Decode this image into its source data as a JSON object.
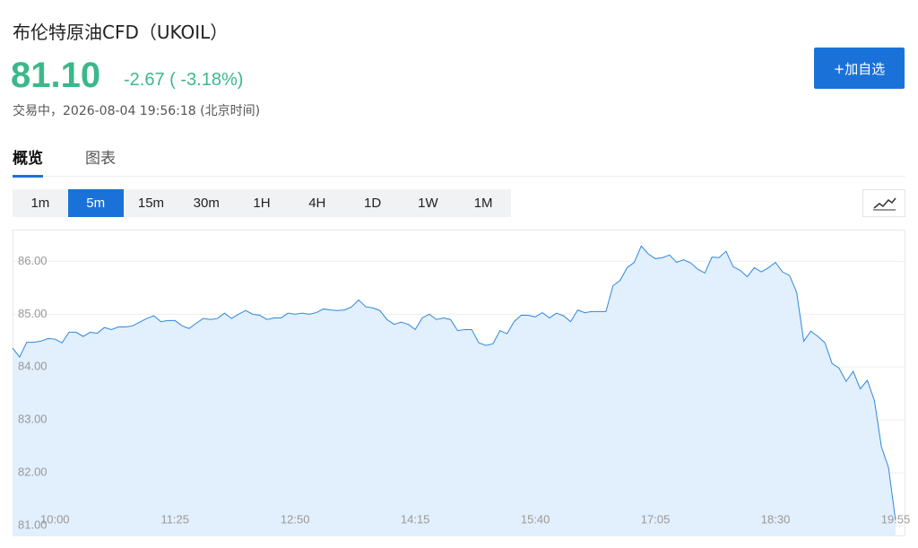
{
  "header": {
    "title": "布伦特原油CFD（UKOIL）",
    "price": "81.10",
    "change": "-2.67 ( -3.18%)",
    "status": "交易中，2026-08-04 19:56:18 (北京时间)",
    "add_button": "+加自选"
  },
  "tabs": {
    "items": [
      "概览",
      "图表"
    ],
    "selected": 0
  },
  "intervals": {
    "items": [
      "1m",
      "5m",
      "15m",
      "30m",
      "1H",
      "4H",
      "1D",
      "1W",
      "1M"
    ],
    "selected": 1
  },
  "chart_data": {
    "type": "area",
    "color": "#2f88de",
    "fill": "#e2effc",
    "grid": true,
    "x": [
      "09:30",
      "09:35",
      "09:40",
      "09:45",
      "09:50",
      "09:55",
      "10:00",
      "10:05",
      "10:10",
      "10:15",
      "10:20",
      "10:25",
      "10:30",
      "10:35",
      "10:40",
      "10:45",
      "10:50",
      "10:55",
      "11:00",
      "11:05",
      "11:10",
      "11:15",
      "11:20",
      "11:25",
      "11:30",
      "11:35",
      "11:40",
      "11:45",
      "11:50",
      "11:55",
      "12:00",
      "12:05",
      "12:10",
      "12:15",
      "12:20",
      "12:25",
      "12:30",
      "12:35",
      "12:40",
      "12:45",
      "12:50",
      "12:55",
      "13:00",
      "13:05",
      "13:10",
      "13:15",
      "13:20",
      "13:25",
      "13:30",
      "13:35",
      "13:40",
      "13:45",
      "13:50",
      "13:55",
      "14:00",
      "14:05",
      "14:10",
      "14:15",
      "14:20",
      "14:25",
      "14:30",
      "14:35",
      "14:40",
      "14:45",
      "14:50",
      "14:55",
      "15:00",
      "15:05",
      "15:10",
      "15:15",
      "15:20",
      "15:25",
      "15:30",
      "15:35",
      "15:40",
      "15:45",
      "15:50",
      "15:55",
      "16:00",
      "16:05",
      "16:10",
      "16:15",
      "16:20",
      "16:25",
      "16:30",
      "16:35",
      "16:40",
      "16:45",
      "16:50",
      "16:55",
      "17:00",
      "17:05",
      "17:10",
      "17:15",
      "17:20",
      "17:25",
      "17:30",
      "17:35",
      "17:40",
      "17:45",
      "17:50",
      "17:55",
      "18:00",
      "18:05",
      "18:10",
      "18:15",
      "18:20",
      "18:25",
      "18:30",
      "18:35",
      "18:40",
      "18:45",
      "18:50",
      "18:55",
      "19:00",
      "19:05",
      "19:10",
      "19:15",
      "19:20",
      "19:25",
      "19:30",
      "19:35",
      "19:40",
      "19:45",
      "19:50",
      "19:55"
    ],
    "values": [
      84.36,
      84.19,
      84.47,
      84.47,
      84.49,
      84.54,
      84.53,
      84.46,
      84.66,
      84.66,
      84.58,
      84.66,
      84.64,
      84.75,
      84.71,
      84.76,
      84.76,
      84.78,
      84.85,
      84.92,
      84.97,
      84.86,
      84.88,
      84.88,
      84.78,
      84.73,
      84.83,
      84.92,
      84.9,
      84.92,
      85.02,
      84.92,
      85.0,
      85.07,
      85.0,
      84.98,
      84.9,
      84.93,
      84.93,
      85.02,
      85.0,
      85.02,
      85.0,
      85.03,
      85.1,
      85.08,
      85.07,
      85.08,
      85.14,
      85.27,
      85.14,
      85.12,
      85.07,
      84.9,
      84.81,
      84.85,
      84.81,
      84.71,
      84.93,
      85.0,
      84.9,
      84.93,
      84.9,
      84.69,
      84.71,
      84.71,
      84.46,
      84.41,
      84.44,
      84.69,
      84.63,
      84.86,
      84.98,
      84.98,
      84.95,
      85.03,
      84.93,
      85.02,
      84.97,
      84.86,
      85.08,
      85.03,
      85.05,
      85.05,
      85.05,
      85.54,
      85.64,
      85.88,
      85.98,
      86.29,
      86.14,
      86.05,
      86.07,
      86.12,
      85.98,
      86.03,
      85.97,
      85.85,
      85.78,
      86.08,
      86.07,
      86.19,
      85.9,
      85.83,
      85.71,
      85.88,
      85.8,
      85.88,
      85.98,
      85.8,
      85.73,
      85.41,
      84.49,
      84.68,
      84.58,
      84.46,
      84.07,
      83.98,
      83.73,
      83.92,
      83.59,
      83.75,
      83.37,
      82.49,
      82.1,
      81.1
    ],
    "xlim": [
      "09:30",
      "19:55"
    ],
    "xticks": [
      "10:00",
      "11:25",
      "12:50",
      "14:15",
      "15:40",
      "17:05",
      "18:30",
      "19:55"
    ],
    "ylim": [
      80.8,
      86.6
    ],
    "yticks": [
      {
        "value": 81,
        "label": "81.00"
      },
      {
        "value": 82,
        "label": "82.00"
      },
      {
        "value": 83,
        "label": "83.00"
      },
      {
        "value": 84,
        "label": "84.00"
      },
      {
        "value": 85,
        "label": "85.00"
      },
      {
        "value": 86,
        "label": "86.00"
      }
    ]
  }
}
